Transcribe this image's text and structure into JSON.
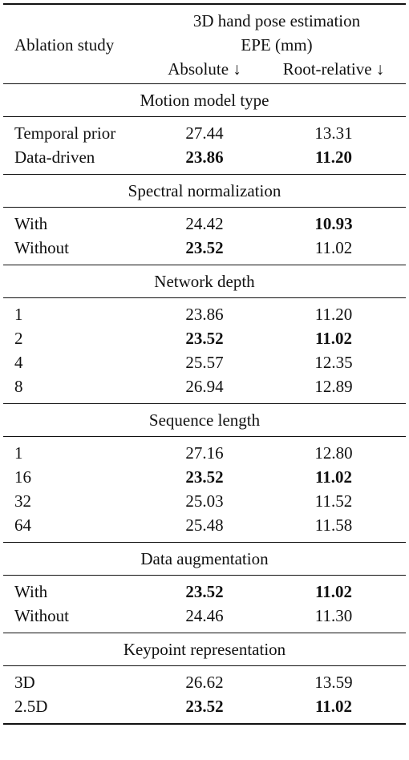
{
  "header": {
    "ablation_label": "Ablation study",
    "title_line1": "3D hand pose estimation",
    "title_line2": "EPE (mm)",
    "col_absolute": "Absolute ↓",
    "col_root_relative": "Root-relative ↓"
  },
  "sections": [
    {
      "title": "Motion model type",
      "rows": [
        {
          "label": "Temporal prior",
          "absolute": "27.44",
          "root_relative": "13.31",
          "bold_abs": false,
          "bold_rel": false
        },
        {
          "label": "Data-driven",
          "absolute": "23.86",
          "root_relative": "11.20",
          "bold_abs": true,
          "bold_rel": true
        }
      ]
    },
    {
      "title": "Spectral normalization",
      "rows": [
        {
          "label": "With",
          "absolute": "24.42",
          "root_relative": "10.93",
          "bold_abs": false,
          "bold_rel": true
        },
        {
          "label": "Without",
          "absolute": "23.52",
          "root_relative": "11.02",
          "bold_abs": true,
          "bold_rel": false
        }
      ]
    },
    {
      "title": "Network depth",
      "rows": [
        {
          "label": "1",
          "absolute": "23.86",
          "root_relative": "11.20",
          "bold_abs": false,
          "bold_rel": false
        },
        {
          "label": "2",
          "absolute": "23.52",
          "root_relative": "11.02",
          "bold_abs": true,
          "bold_rel": true
        },
        {
          "label": "4",
          "absolute": "25.57",
          "root_relative": "12.35",
          "bold_abs": false,
          "bold_rel": false
        },
        {
          "label": "8",
          "absolute": "26.94",
          "root_relative": "12.89",
          "bold_abs": false,
          "bold_rel": false
        }
      ]
    },
    {
      "title": "Sequence length",
      "rows": [
        {
          "label": "1",
          "absolute": "27.16",
          "root_relative": "12.80",
          "bold_abs": false,
          "bold_rel": false
        },
        {
          "label": "16",
          "absolute": "23.52",
          "root_relative": "11.02",
          "bold_abs": true,
          "bold_rel": true
        },
        {
          "label": "32",
          "absolute": "25.03",
          "root_relative": "11.52",
          "bold_abs": false,
          "bold_rel": false
        },
        {
          "label": "64",
          "absolute": "25.48",
          "root_relative": "11.58",
          "bold_abs": false,
          "bold_rel": false
        }
      ]
    },
    {
      "title": "Data augmentation",
      "rows": [
        {
          "label": "With",
          "absolute": "23.52",
          "root_relative": "11.02",
          "bold_abs": true,
          "bold_rel": true
        },
        {
          "label": "Without",
          "absolute": "24.46",
          "root_relative": "11.30",
          "bold_abs": false,
          "bold_rel": false
        }
      ]
    },
    {
      "title": "Keypoint representation",
      "rows": [
        {
          "label": "3D",
          "absolute": "26.62",
          "root_relative": "13.59",
          "bold_abs": false,
          "bold_rel": false
        },
        {
          "label": "2.5D",
          "absolute": "23.52",
          "root_relative": "11.02",
          "bold_abs": true,
          "bold_rel": true
        }
      ]
    }
  ]
}
